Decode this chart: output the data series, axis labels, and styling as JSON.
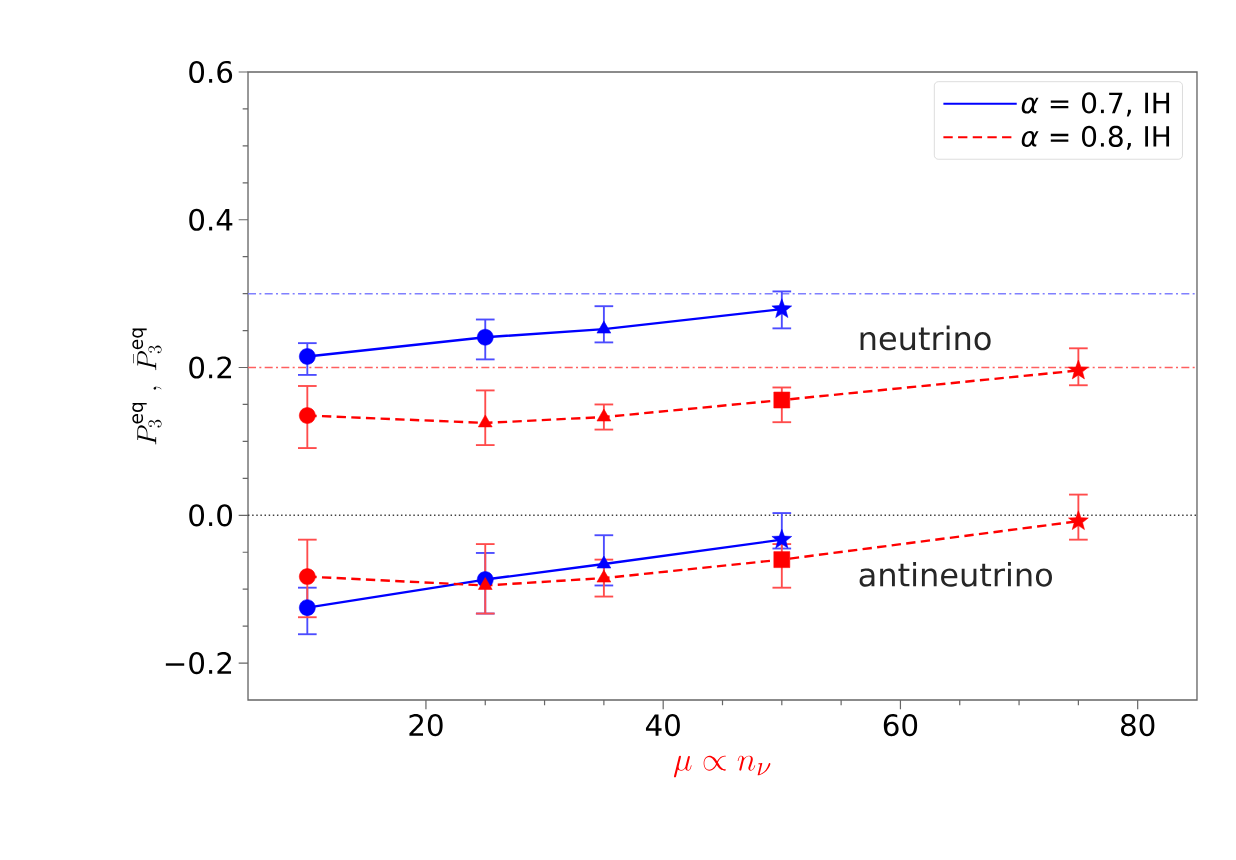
{
  "chart_data": {
    "type": "line",
    "xlabel": "\\mu \\propto n_\\nu",
    "ylabel": "P_3^{\\mathrm{eq}}\\ ,\\ \\bar{P}_3^{\\mathrm{eq}}",
    "xlim": [
      5,
      85
    ],
    "ylim": [
      -0.25,
      0.6
    ],
    "xticks": [
      20,
      40,
      60,
      80
    ],
    "yticks": [
      {
        "value": -0.2,
        "label": "−0.2"
      },
      {
        "value": 0,
        "label": "0.0"
      },
      {
        "value": 0.2,
        "label": "0.2"
      },
      {
        "value": 0.4,
        "label": "0.4"
      },
      {
        "value": 0.6,
        "label": "0.6"
      }
    ],
    "legend": "top right",
    "annotations": [
      "neutrino",
      "antineutrino"
    ],
    "ref_lines": [
      {
        "axis": "y",
        "value": 0.3,
        "color": "#8080ff",
        "line_style": "dashdot"
      },
      {
        "axis": "y",
        "value": 0.2,
        "color": "#ff6060",
        "line_style": "dashdot"
      },
      {
        "axis": "y",
        "value": 0.0,
        "color": "#404040",
        "line_style": "dotted"
      }
    ],
    "series": [
      {
        "name": "*α* = 0.7, IH",
        "color": "#0000ff",
        "line_style": "solid",
        "marker": "none",
        "x": [
          10,
          25,
          35,
          50
        ],
        "values": [
          0.215,
          0.241,
          0.252,
          0.279
        ]
      },
      {
        "name": "*α* = 0.8, IH",
        "color": "#ff0000",
        "line_style": "dashed",
        "marker": "none",
        "x": [
          10,
          25,
          35,
          50,
          75
        ],
        "values": [
          0.135,
          0.125,
          0.133,
          0.156,
          0.196
        ]
      },
      {
        "color": "#0000ff",
        "line_style": "solid",
        "marker": "none",
        "x": [
          10,
          25,
          35,
          50
        ],
        "values": [
          -0.125,
          -0.087,
          -0.066,
          -0.033
        ]
      },
      {
        "color": "#ff0000",
        "line_style": "dashed",
        "marker": "none",
        "x": [
          10,
          25,
          35,
          50,
          75
        ],
        "values": [
          -0.083,
          -0.095,
          -0.085,
          -0.06,
          -0.008
        ]
      },
      {
        "type": "scatter",
        "color": "#0000ff",
        "marker": "circle",
        "x": [
          10,
          25
        ],
        "values": [
          0.215,
          0.241
        ],
        "errors": [
          [
            0.19,
            0.233
          ],
          [
            0.211,
            0.265
          ]
        ]
      },
      {
        "type": "scatter",
        "color": "#0000ff",
        "marker": "triangle",
        "x": [
          35
        ],
        "values": [
          0.252
        ],
        "errors": [
          [
            0.234,
            0.283
          ]
        ]
      },
      {
        "type": "scatter",
        "color": "#0000ff",
        "marker": "star",
        "x": [
          50
        ],
        "values": [
          0.279
        ],
        "errors": [
          [
            0.253,
            0.303
          ]
        ]
      },
      {
        "type": "scatter",
        "color": "#ff0000",
        "marker": "circle",
        "x": [
          10
        ],
        "values": [
          0.135
        ],
        "errors": [
          [
            0.091,
            0.175
          ]
        ]
      },
      {
        "type": "scatter",
        "color": "#ff0000",
        "marker": "triangle",
        "x": [
          25,
          35
        ],
        "values": [
          0.125,
          0.133
        ],
        "errors": [
          [
            0.095,
            0.169
          ],
          [
            0.116,
            0.15
          ]
        ]
      },
      {
        "type": "scatter",
        "color": "#ff0000",
        "marker": "square",
        "x": [
          50
        ],
        "values": [
          0.156
        ],
        "errors": [
          [
            0.126,
            0.173
          ]
        ]
      },
      {
        "type": "scatter",
        "color": "#ff0000",
        "marker": "star",
        "x": [
          75
        ],
        "values": [
          0.196
        ],
        "errors": [
          [
            0.176,
            0.226
          ]
        ]
      },
      {
        "type": "scatter",
        "color": "#0000ff",
        "marker": "circle",
        "x": [
          10,
          25
        ],
        "values": [
          -0.125,
          -0.087
        ],
        "errors": [
          [
            -0.161,
            -0.098
          ],
          [
            -0.133,
            -0.051
          ]
        ]
      },
      {
        "type": "scatter",
        "color": "#0000ff",
        "marker": "triangle",
        "x": [
          35
        ],
        "values": [
          -0.066
        ],
        "errors": [
          [
            -0.095,
            -0.027
          ]
        ]
      },
      {
        "type": "scatter",
        "color": "#0000ff",
        "marker": "star",
        "x": [
          50
        ],
        "values": [
          -0.033
        ],
        "errors": [
          [
            -0.045,
            0.003
          ]
        ]
      },
      {
        "type": "scatter",
        "color": "#ff0000",
        "marker": "circle",
        "x": [
          10
        ],
        "values": [
          -0.083
        ],
        "errors": [
          [
            -0.138,
            -0.033
          ]
        ]
      },
      {
        "type": "scatter",
        "color": "#ff0000",
        "marker": "triangle",
        "x": [
          25,
          35
        ],
        "values": [
          -0.095,
          -0.085
        ],
        "errors": [
          [
            -0.133,
            -0.039
          ],
          [
            -0.11,
            -0.06
          ]
        ]
      },
      {
        "type": "scatter",
        "color": "#ff0000",
        "marker": "square",
        "x": [
          50
        ],
        "values": [
          -0.06
        ],
        "errors": [
          [
            -0.098,
            -0.039
          ]
        ]
      },
      {
        "type": "scatter",
        "color": "#ff0000",
        "marker": "star",
        "x": [
          75
        ],
        "values": [
          -0.008
        ],
        "errors": [
          [
            -0.033,
            0.028
          ]
        ]
      }
    ]
  }
}
